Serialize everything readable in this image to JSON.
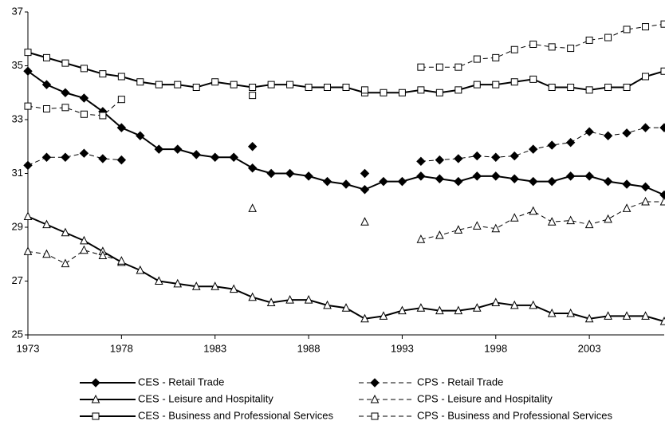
{
  "chart_data": {
    "type": "line",
    "x": [
      1973,
      1974,
      1975,
      1976,
      1977,
      1978,
      1979,
      1980,
      1981,
      1982,
      1983,
      1984,
      1985,
      1986,
      1987,
      1988,
      1989,
      1990,
      1991,
      1992,
      1993,
      1994,
      1995,
      1996,
      1997,
      1998,
      1999,
      2000,
      2001,
      2002,
      2003,
      2004,
      2005,
      2006,
      2007
    ],
    "xlim": [
      1973,
      2007
    ],
    "xticks": [
      1973,
      1978,
      1983,
      1988,
      1993,
      1998,
      2003
    ],
    "ylim": [
      25,
      37
    ],
    "yticks": [
      25,
      27,
      29,
      31,
      33,
      35,
      37
    ],
    "grid": false,
    "series": [
      {
        "name": "CES - Retail Trade",
        "color": "#000000",
        "marker": "diamond",
        "dashed": false,
        "values": [
          34.8,
          34.3,
          34.0,
          33.8,
          33.3,
          32.7,
          32.4,
          31.9,
          31.9,
          31.7,
          31.6,
          31.6,
          31.2,
          31.0,
          31.0,
          30.9,
          30.7,
          30.6,
          30.4,
          30.7,
          30.7,
          30.9,
          30.8,
          30.7,
          30.9,
          30.9,
          30.8,
          30.7,
          30.7,
          30.9,
          30.9,
          30.7,
          30.6,
          30.5,
          30.2
        ]
      },
      {
        "name": "CPS - Retail Trade",
        "color": "#000000",
        "marker": "diamond",
        "dashed": true,
        "values": [
          31.3,
          31.6,
          31.6,
          31.75,
          31.55,
          31.5,
          null,
          null,
          null,
          null,
          null,
          null,
          32.0,
          null,
          null,
          null,
          null,
          null,
          31.0,
          null,
          null,
          31.45,
          31.5,
          31.55,
          31.65,
          31.6,
          31.65,
          31.9,
          32.05,
          32.15,
          32.55,
          32.4,
          32.5,
          32.7,
          32.7
        ]
      },
      {
        "name": "CES - Leisure and Hospitality",
        "color": "#000000",
        "marker": "triangle",
        "dashed": false,
        "values": [
          29.4,
          29.1,
          28.8,
          28.5,
          28.1,
          27.7,
          27.4,
          27.0,
          26.9,
          26.8,
          26.8,
          26.7,
          26.4,
          26.2,
          26.3,
          26.3,
          26.1,
          26.0,
          25.6,
          25.7,
          25.9,
          26.0,
          25.9,
          25.9,
          26.0,
          26.2,
          26.1,
          26.1,
          25.8,
          25.8,
          25.6,
          25.7,
          25.7,
          25.7,
          25.5
        ]
      },
      {
        "name": "CPS - Leisure and Hospitality",
        "color": "#000000",
        "marker": "triangle",
        "dashed": true,
        "values": [
          28.1,
          28.0,
          27.65,
          28.15,
          27.95,
          27.75,
          null,
          null,
          null,
          null,
          null,
          null,
          29.7,
          null,
          null,
          null,
          null,
          null,
          29.2,
          null,
          null,
          28.55,
          28.7,
          28.9,
          29.05,
          28.95,
          29.35,
          29.6,
          29.2,
          29.25,
          29.1,
          29.3,
          29.7,
          29.95,
          29.95
        ]
      },
      {
        "name": "CES - Business and Professional Services",
        "color": "#000000",
        "marker": "square",
        "dashed": false,
        "values": [
          35.5,
          35.3,
          35.1,
          34.9,
          34.7,
          34.6,
          34.4,
          34.3,
          34.3,
          34.2,
          34.4,
          34.3,
          34.2,
          34.3,
          34.3,
          34.2,
          34.2,
          34.2,
          34.0,
          34.0,
          34.0,
          34.1,
          34.0,
          34.1,
          34.3,
          34.3,
          34.4,
          34.5,
          34.2,
          34.2,
          34.1,
          34.2,
          34.2,
          34.6,
          34.8
        ]
      },
      {
        "name": "CPS - Business and Professional Services",
        "color": "#000000",
        "marker": "square",
        "dashed": true,
        "values": [
          33.5,
          33.4,
          33.45,
          33.2,
          33.15,
          33.75,
          null,
          null,
          null,
          null,
          null,
          null,
          33.9,
          null,
          null,
          null,
          null,
          null,
          34.1,
          null,
          null,
          34.95,
          34.95,
          34.95,
          35.25,
          35.3,
          35.6,
          35.8,
          35.7,
          35.65,
          35.95,
          36.05,
          36.35,
          36.45,
          36.55
        ]
      }
    ]
  }
}
